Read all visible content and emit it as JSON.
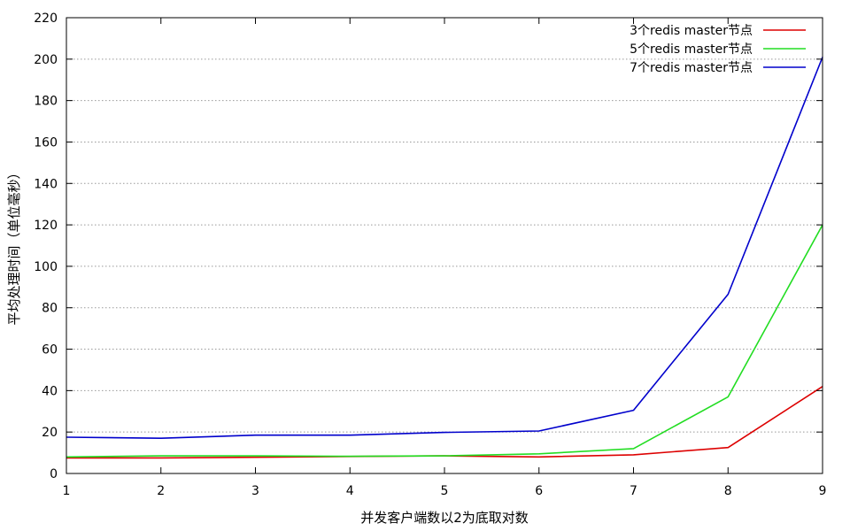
{
  "chart_data": {
    "type": "line",
    "title": "",
    "xlabel": "并发客户端数以2为底取对数",
    "ylabel": "平均处理时间（单位毫秒）",
    "xlim": [
      1,
      9
    ],
    "ylim": [
      0,
      220
    ],
    "xticks": [
      1,
      2,
      3,
      4,
      5,
      6,
      7,
      8,
      9
    ],
    "yticks": [
      0,
      20,
      40,
      60,
      80,
      100,
      120,
      140,
      160,
      180,
      200,
      220
    ],
    "grid": "horizontal-dotted",
    "legend_position": "top-right",
    "x": [
      1,
      2,
      3,
      4,
      5,
      6,
      7,
      8,
      9
    ],
    "series": [
      {
        "name": "3个redis master节点",
        "color": "#dd0000",
        "values": [
          7.5,
          7.5,
          7.8,
          8.2,
          8.5,
          8.0,
          9.0,
          12.5,
          42
        ]
      },
      {
        "name": "5个redis master节点",
        "color": "#22dd22",
        "values": [
          8.0,
          8.5,
          8.5,
          8.3,
          8.5,
          9.5,
          12.0,
          37,
          120
        ]
      },
      {
        "name": "7个redis master节点",
        "color": "#0000cc",
        "values": [
          17.5,
          17.0,
          18.5,
          18.5,
          19.8,
          20.5,
          30.5,
          86.5,
          201
        ]
      }
    ]
  }
}
